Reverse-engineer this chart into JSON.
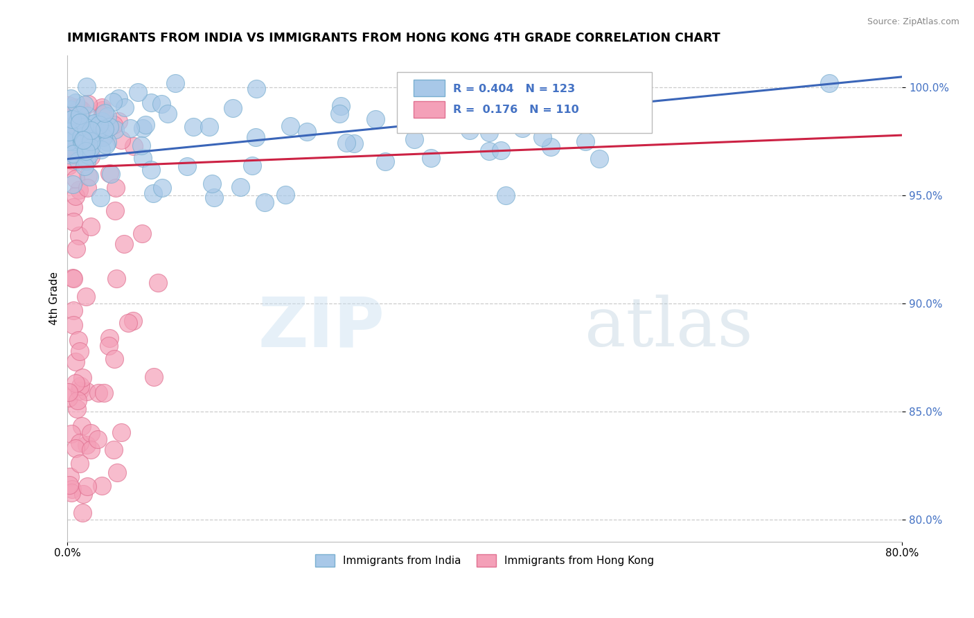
{
  "title": "IMMIGRANTS FROM INDIA VS IMMIGRANTS FROM HONG KONG 4TH GRADE CORRELATION CHART",
  "source": "Source: ZipAtlas.com",
  "ylabel": "4th Grade",
  "xlim": [
    0.0,
    0.8
  ],
  "ylim": [
    0.79,
    1.015
  ],
  "x_ticks": [
    0.0,
    0.8
  ],
  "x_tick_labels": [
    "0.0%",
    "80.0%"
  ],
  "y_ticks": [
    0.8,
    0.85,
    0.9,
    0.95,
    1.0
  ],
  "y_tick_labels": [
    "80.0%",
    "85.0%",
    "90.0%",
    "95.0%",
    "100.0%"
  ],
  "india_color": "#a8c8e8",
  "india_edge": "#7aafd0",
  "hk_color": "#f4a0b8",
  "hk_edge": "#e07090",
  "india_R": 0.404,
  "india_N": 123,
  "hk_R": 0.176,
  "hk_N": 110,
  "trend_india_color": "#3a65b8",
  "trend_hk_color": "#cc2244",
  "background_color": "#ffffff",
  "grid_color": "#cccccc",
  "watermark_zip": "ZIP",
  "watermark_atlas": "atlas",
  "legend_label_india": "Immigrants from India",
  "legend_label_hk": "Immigrants from Hong Kong"
}
